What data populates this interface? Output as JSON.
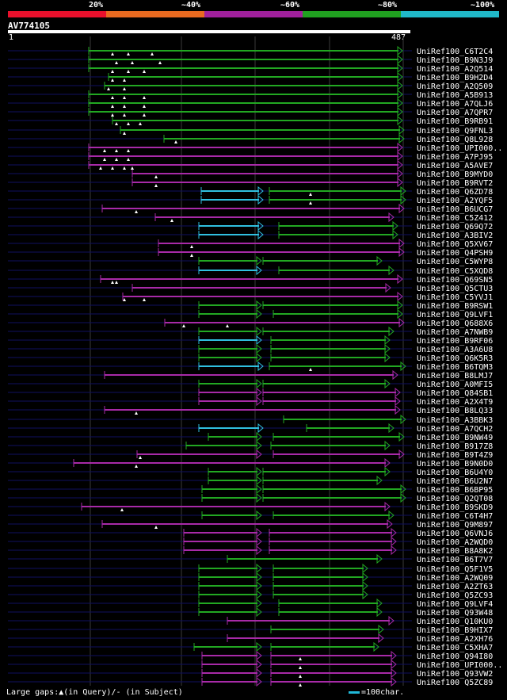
{
  "query": {
    "id": "AV774105",
    "start": "1",
    "end": "487",
    "length": 487
  },
  "identity_scale": {
    "labels": [
      "20%",
      "~40%",
      "~60%",
      "~80%",
      "~100%"
    ],
    "colors": [
      "#e8102c",
      "#e86a20",
      "#a0209c",
      "#20a020",
      "#20b8c8"
    ]
  },
  "colors": {
    "green": "#22a822",
    "magenta": "#a82aa8",
    "cyan": "#30c0e0",
    "navy": "#101060",
    "guide": "#3a3a3a"
  },
  "footer": {
    "gaps_text": "Large gaps:▲(in Query)/- (in Subject)",
    "scale_text": "=100char."
  },
  "hits": [
    {
      "label": "UniRef100_C6T2C4",
      "c": "g",
      "segs": [
        [
          112,
          508
        ]
      ],
      "tri": [
        142,
        162,
        192
      ]
    },
    {
      "label": "UniRef100_B9N3J9",
      "c": "g",
      "segs": [
        [
          112,
          508
        ]
      ],
      "tri": [
        147,
        167,
        202
      ]
    },
    {
      "label": "UniRef100_A2Q514",
      "c": "g",
      "segs": [
        [
          112,
          508
        ]
      ],
      "tri": [
        142,
        162,
        182
      ]
    },
    {
      "label": "UniRef100_B9H2D4",
      "c": "g",
      "segs": [
        [
          137,
          508
        ]
      ],
      "tri": [
        142,
        157
      ]
    },
    {
      "label": "UniRef100_A2Q509",
      "c": "g",
      "segs": [
        [
          132,
          508
        ]
      ],
      "tri": [
        137,
        157
      ]
    },
    {
      "label": "UniRef100_A5B913",
      "c": "g",
      "segs": [
        [
          112,
          508
        ]
      ],
      "tri": [
        142,
        157,
        182
      ]
    },
    {
      "label": "UniRef100_A7QLJ6",
      "c": "g",
      "segs": [
        [
          112,
          508
        ]
      ],
      "tri": [
        142,
        157,
        182
      ]
    },
    {
      "label": "UniRef100_A7QPR7",
      "c": "g",
      "segs": [
        [
          112,
          508
        ]
      ],
      "tri": [
        142,
        157,
        182
      ]
    },
    {
      "label": "UniRef100_B9RB91",
      "c": "g",
      "segs": [
        [
          142,
          508
        ]
      ],
      "tri": [
        147,
        162,
        177
      ]
    },
    {
      "label": "UniRef100_Q9FNL3",
      "c": "g",
      "segs": [
        [
          152,
          510
        ]
      ],
      "tri": [
        157
      ]
    },
    {
      "label": "UniRef100_Q8L928",
      "c": "g",
      "segs": [
        [
          207,
          510
        ]
      ],
      "tri": [
        222
      ]
    },
    {
      "label": "UniRef100_UPI000..",
      "c": "m",
      "segs": [
        [
          112,
          508
        ]
      ],
      "tri": [
        132,
        147,
        162
      ]
    },
    {
      "label": "UniRef100_A7PJ95",
      "c": "m",
      "segs": [
        [
          112,
          508
        ]
      ],
      "tri": [
        132,
        147,
        162
      ]
    },
    {
      "label": "UniRef100_A5AVE7",
      "c": "m",
      "segs": [
        [
          112,
          508
        ]
      ],
      "tri": [
        127,
        142,
        157,
        167
      ]
    },
    {
      "label": "UniRef100_B9MYD0",
      "c": "m",
      "segs": [
        [
          167,
          508
        ]
      ],
      "tri": [
        197
      ]
    },
    {
      "label": "UniRef100_B9RVT2",
      "c": "m",
      "segs": [
        [
          167,
          508
        ]
      ],
      "tri": [
        197
      ]
    },
    {
      "label": "UniRef100_Q6ZD78",
      "c": "c",
      "segs": [
        [
          254,
          332
        ],
        [
          340,
          512
        ]
      ],
      "tri": [
        392
      ]
    },
    {
      "label": "UniRef100_A2YQF5",
      "c": "c",
      "segs": [
        [
          254,
          332
        ],
        [
          340,
          512
        ]
      ],
      "tri": [
        392
      ]
    },
    {
      "label": "UniRef100_B6UCG7",
      "c": "m",
      "segs": [
        [
          129,
          510
        ]
      ],
      "tri": [
        172
      ]
    },
    {
      "label": "UniRef100_C5Z412",
      "c": "m",
      "segs": [
        [
          196,
          497
        ]
      ],
      "tri": [
        217
      ]
    },
    {
      "label": "UniRef100_Q69Q72",
      "c": "c",
      "segs": [
        [
          251,
          332
        ],
        [
          352,
          502
        ]
      ],
      "tri": []
    },
    {
      "label": "UniRef100_A3BIV2",
      "c": "c",
      "segs": [
        [
          251,
          332
        ],
        [
          352,
          502
        ]
      ],
      "tri": []
    },
    {
      "label": "UniRef100_Q5XV67",
      "c": "m",
      "segs": [
        [
          200,
          510
        ]
      ],
      "tri": [
        242
      ]
    },
    {
      "label": "UniRef100_Q4PSH9",
      "c": "m",
      "segs": [
        [
          200,
          510
        ]
      ],
      "tri": [
        242
      ]
    },
    {
      "label": "UniRef100_C5WYP8",
      "c": "g",
      "segs": [
        [
          251,
          330
        ],
        [
          332,
          482
        ]
      ],
      "tri": []
    },
    {
      "label": "UniRef100_C5XQD8",
      "c": "c",
      "segs": [
        [
          251,
          330
        ],
        [
          352,
          497
        ]
      ],
      "tri": []
    },
    {
      "label": "UniRef100_Q69SN5",
      "c": "m",
      "segs": [
        [
          127,
          508
        ]
      ],
      "tri": [
        142,
        147
      ]
    },
    {
      "label": "UniRef100_Q5CTU3",
      "c": "m",
      "segs": [
        [
          167,
          493
        ]
      ],
      "tri": []
    },
    {
      "label": "UniRef100_C5YVJ1",
      "c": "m",
      "segs": [
        [
          155,
          508
        ]
      ],
      "tri": [
        157,
        182
      ]
    },
    {
      "label": "UniRef100_B9RSW1",
      "c": "g",
      "segs": [
        [
          251,
          330
        ],
        [
          332,
          508
        ]
      ],
      "tri": []
    },
    {
      "label": "UniRef100_Q9LVF1",
      "c": "g",
      "segs": [
        [
          251,
          330
        ],
        [
          345,
          508
        ]
      ],
      "tri": []
    },
    {
      "label": "UniRef100_Q688X6",
      "c": "m",
      "segs": [
        [
          208,
          510
        ]
      ],
      "tri": [
        232,
        287
      ]
    },
    {
      "label": "UniRef100_A7NWB9",
      "c": "g",
      "segs": [
        [
          251,
          330
        ],
        [
          332,
          497
        ]
      ],
      "tri": []
    },
    {
      "label": "UniRef100_B9RF06",
      "c": "c",
      "segs": [
        [
          251,
          330
        ],
        [
          342,
          492
        ]
      ],
      "tri": []
    },
    {
      "label": "UniRef100_A3A6U8",
      "c": "g",
      "segs": [
        [
          251,
          330
        ],
        [
          342,
          492
        ]
      ],
      "tri": []
    },
    {
      "label": "UniRef100_Q6K5R3",
      "c": "g",
      "segs": [
        [
          251,
          330
        ],
        [
          342,
          492
        ]
      ],
      "tri": []
    },
    {
      "label": "UniRef100_B6TQM3",
      "c": "c",
      "segs": [
        [
          251,
          332
        ],
        [
          340,
          512
        ]
      ],
      "tri": [
        392
      ]
    },
    {
      "label": "UniRef100_B8LMJ7",
      "c": "m",
      "segs": [
        [
          132,
          502
        ]
      ],
      "tri": []
    },
    {
      "label": "UniRef100_A0MFI5",
      "c": "g",
      "segs": [
        [
          251,
          330
        ],
        [
          332,
          492
        ]
      ],
      "tri": []
    },
    {
      "label": "UniRef100_Q84SB1",
      "c": "m",
      "segs": [
        [
          251,
          330
        ],
        [
          332,
          505
        ]
      ],
      "tri": []
    },
    {
      "label": "UniRef100_A2X4T9",
      "c": "m",
      "segs": [
        [
          251,
          330
        ],
        [
          332,
          505
        ]
      ],
      "tri": []
    },
    {
      "label": "UniRef100_B8LQ33",
      "c": "m",
      "segs": [
        [
          132,
          505
        ]
      ],
      "tri": [
        172
      ]
    },
    {
      "label": "UniRef100_A3BBK3",
      "c": "g",
      "segs": [
        [
          358,
          512
        ]
      ],
      "tri": []
    },
    {
      "label": "UniRef100_A7QCH2",
      "c": "c",
      "segs": [
        [
          251,
          332
        ],
        [
          387,
          497
        ]
      ],
      "tri": []
    },
    {
      "label": "UniRef100_B9NW49",
      "c": "g",
      "segs": [
        [
          263,
          330
        ],
        [
          345,
          510
        ]
      ],
      "tri": []
    },
    {
      "label": "UniRef100_B917Z8",
      "c": "g",
      "segs": [
        [
          235,
          330
        ],
        [
          342,
          492
        ]
      ],
      "tri": []
    },
    {
      "label": "UniRef100_B9T4Z9",
      "c": "m",
      "segs": [
        [
          173,
          330
        ],
        [
          345,
          510
        ]
      ],
      "tri": [
        177
      ]
    },
    {
      "label": "UniRef100_B9N0D0",
      "c": "m",
      "segs": [
        [
          93,
          492
        ]
      ],
      "tri": [
        172
      ]
    },
    {
      "label": "UniRef100_B6U4Y0",
      "c": "g",
      "segs": [
        [
          263,
          330
        ],
        [
          332,
          492
        ]
      ],
      "tri": []
    },
    {
      "label": "UniRef100_B6U2N7",
      "c": "g",
      "segs": [
        [
          263,
          330
        ],
        [
          332,
          482
        ]
      ],
      "tri": []
    },
    {
      "label": "UniRef100_B6BP95",
      "c": "g",
      "segs": [
        [
          255,
          330
        ],
        [
          332,
          512
        ]
      ],
      "tri": []
    },
    {
      "label": "UniRef100_Q2QT08",
      "c": "g",
      "segs": [
        [
          255,
          330
        ],
        [
          332,
          512
        ]
      ],
      "tri": []
    },
    {
      "label": "UniRef100_B9SKD9",
      "c": "m",
      "segs": [
        [
          103,
          492
        ]
      ],
      "tri": [
        154
      ]
    },
    {
      "label": "UniRef100_C6T4H7",
      "c": "g",
      "segs": [
        [
          255,
          330
        ],
        [
          345,
          497
        ]
      ],
      "tri": []
    },
    {
      "label": "UniRef100_Q9M897",
      "c": "m",
      "segs": [
        [
          129,
          495
        ]
      ],
      "tri": [
        197
      ]
    },
    {
      "label": "UniRef100_Q6VNJ6",
      "c": "m",
      "segs": [
        [
          232,
          330
        ],
        [
          340,
          500
        ]
      ],
      "tri": []
    },
    {
      "label": "UniRef100_A2WQD0",
      "c": "m",
      "segs": [
        [
          232,
          330
        ],
        [
          340,
          500
        ]
      ],
      "tri": []
    },
    {
      "label": "UniRef100_B8A8K2",
      "c": "m",
      "segs": [
        [
          232,
          330
        ],
        [
          340,
          500
        ]
      ],
      "tri": []
    },
    {
      "label": "UniRef100_B6T7V7",
      "c": "g",
      "segs": [
        [
          287,
          482
        ]
      ],
      "tri": []
    },
    {
      "label": "UniRef100_Q5F1V5",
      "c": "g",
      "segs": [
        [
          251,
          330
        ],
        [
          345,
          464
        ]
      ],
      "tri": []
    },
    {
      "label": "UniRef100_A2WQ09",
      "c": "g",
      "segs": [
        [
          251,
          330
        ],
        [
          345,
          464
        ]
      ],
      "tri": []
    },
    {
      "label": "UniRef100_A2ZT63",
      "c": "g",
      "segs": [
        [
          251,
          330
        ],
        [
          345,
          464
        ]
      ],
      "tri": []
    },
    {
      "label": "UniRef100_Q5ZC93",
      "c": "g",
      "segs": [
        [
          251,
          330
        ],
        [
          345,
          464
        ]
      ],
      "tri": []
    },
    {
      "label": "UniRef100_Q9LVF4",
      "c": "g",
      "segs": [
        [
          251,
          330
        ],
        [
          352,
          482
        ]
      ],
      "tri": []
    },
    {
      "label": "UniRef100_Q93W48",
      "c": "g",
      "segs": [
        [
          251,
          330
        ],
        [
          352,
          482
        ]
      ],
      "tri": []
    },
    {
      "label": "UniRef100_Q10KU0",
      "c": "m",
      "segs": [
        [
          287,
          497
        ]
      ],
      "tri": []
    },
    {
      "label": "UniRef100_B9HIX7",
      "c": "g",
      "segs": [
        [
          342,
          484
        ]
      ],
      "tri": []
    },
    {
      "label": "UniRef100_A2XH76",
      "c": "m",
      "segs": [
        [
          287,
          484
        ]
      ],
      "tri": []
    },
    {
      "label": "UniRef100_C5XHA7",
      "c": "g",
      "segs": [
        [
          245,
          330
        ],
        [
          342,
          478
        ]
      ],
      "tri": []
    },
    {
      "label": "UniRef100_Q94I80",
      "c": "m",
      "segs": [
        [
          255,
          330
        ],
        [
          342,
          500
        ]
      ],
      "tri": [
        379
      ]
    },
    {
      "label": "UniRef100_UPI000..",
      "c": "m",
      "segs": [
        [
          255,
          330
        ],
        [
          342,
          500
        ]
      ],
      "tri": [
        379
      ]
    },
    {
      "label": "UniRef100_Q93VW2",
      "c": "m",
      "segs": [
        [
          255,
          330
        ],
        [
          342,
          500
        ]
      ],
      "tri": [
        379
      ]
    },
    {
      "label": "UniRef100_Q5ZC89",
      "c": "m",
      "segs": [
        [
          255,
          330
        ],
        [
          342,
          500
        ]
      ],
      "tri": [
        379
      ]
    }
  ]
}
